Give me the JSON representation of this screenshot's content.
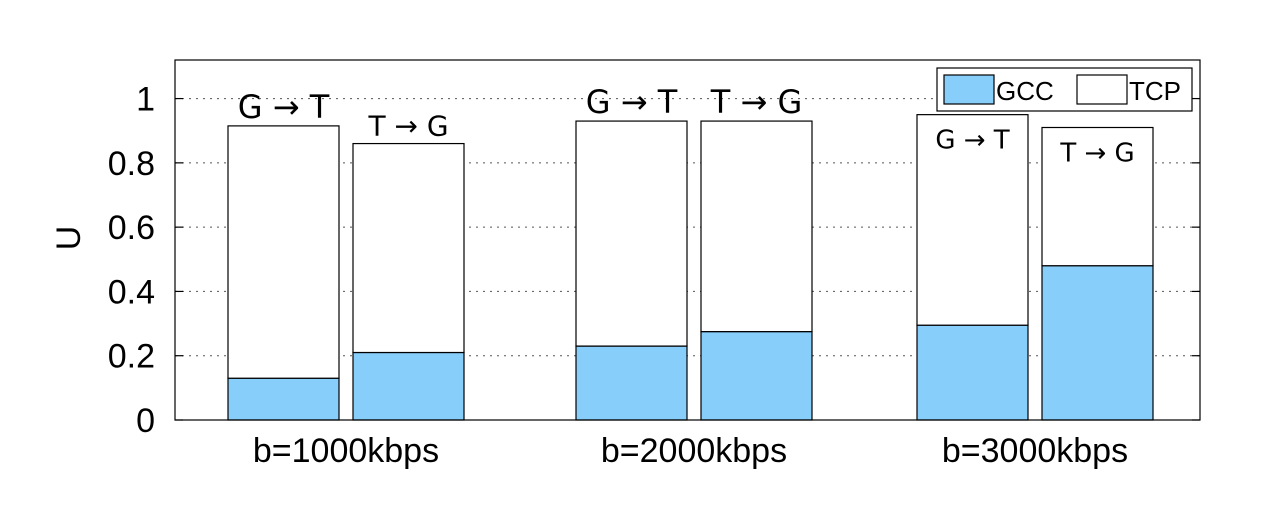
{
  "chart_data": {
    "type": "bar",
    "stacked": true,
    "ylabel": "U",
    "xlabel": "",
    "ylim": [
      0,
      1.12
    ],
    "yticks": [
      0,
      0.2,
      0.4,
      0.6,
      0.8,
      1
    ],
    "ytick_labels": [
      "0",
      "0.2",
      "0.4",
      "0.6",
      "0.8",
      "1"
    ],
    "grid": "horizontal dotted",
    "legend": {
      "position": "top-right",
      "entries": [
        {
          "label": "GCC",
          "color": "#87cefa"
        },
        {
          "label": "TCP",
          "color": "#ffffff"
        }
      ]
    },
    "groups": [
      {
        "label": "b=1000kbps",
        "bars": [
          {
            "annotation": "G → T",
            "GCC": 0.13,
            "TCP": 0.785
          },
          {
            "annotation": "T → G",
            "GCC": 0.21,
            "TCP": 0.65
          }
        ]
      },
      {
        "label": "b=2000kbps",
        "bars": [
          {
            "annotation": "G → T",
            "GCC": 0.23,
            "TCP": 0.7
          },
          {
            "annotation": "T → G",
            "GCC": 0.275,
            "TCP": 0.655
          }
        ]
      },
      {
        "label": "b=3000kbps",
        "bars": [
          {
            "annotation": "G → T",
            "GCC": 0.295,
            "TCP": 0.655
          },
          {
            "annotation": "T → G",
            "GCC": 0.48,
            "TCP": 0.43
          }
        ]
      }
    ],
    "series_colors": {
      "GCC": "#87cefa",
      "TCP": "#ffffff"
    }
  }
}
